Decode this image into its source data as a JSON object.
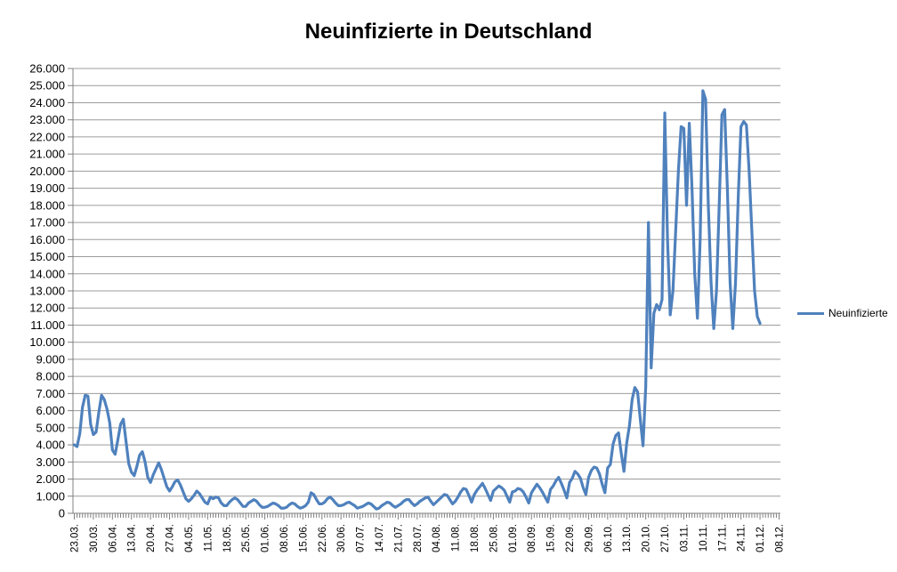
{
  "chart": {
    "title": "Neuinfizierte in Deutschland",
    "legend_label": "Neuinfizierte"
  },
  "chart_data": {
    "type": "line",
    "title": "Neuinfizierte in Deutschland",
    "xlabel": "",
    "ylabel": "",
    "ylim": [
      0,
      26000
    ],
    "y_tick_step": 1000,
    "y_tick_format": "german-thousands-dot",
    "grid": "horizontal",
    "legend_position": "right",
    "n_categories": 260,
    "x_label_every": 7,
    "x_tick_labels": [
      "23.03.",
      "30.03.",
      "06.04.",
      "13.04.",
      "20.04.",
      "27.04.",
      "04.05.",
      "11.05.",
      "18.05.",
      "25.05.",
      "01.06.",
      "08.06.",
      "15.06.",
      "22.06.",
      "30.06.",
      "07.07.",
      "14.07.",
      "21.07.",
      "28.07.",
      "04.08.",
      "11.08.",
      "18.08.",
      "25.08.",
      "01.09.",
      "08.09.",
      "15.09.",
      "22.09.",
      "29.09.",
      "06.10.",
      "13.10.",
      "20.10.",
      "27.10.",
      "03.11.",
      "10.11.",
      "17.11.",
      "24.11.",
      "01.12.",
      "08.12."
    ],
    "series": [
      {
        "name": "Neuinfizierte",
        "color": "#4F81BD",
        "values": [
          4000,
          3900,
          4650,
          6200,
          6900,
          6850,
          5200,
          4600,
          4750,
          5900,
          6900,
          6650,
          6100,
          5300,
          3700,
          3450,
          4300,
          5200,
          5500,
          4200,
          2900,
          2400,
          2200,
          2750,
          3400,
          3600,
          3000,
          2100,
          1800,
          2250,
          2600,
          2950,
          2550,
          2050,
          1550,
          1300,
          1550,
          1850,
          1950,
          1650,
          1250,
          850,
          700,
          850,
          1050,
          1300,
          1150,
          900,
          650,
          550,
          950,
          850,
          950,
          900,
          600,
          450,
          450,
          650,
          800,
          900,
          800,
          600,
          400,
          400,
          600,
          700,
          800,
          700,
          500,
          350,
          350,
          400,
          500,
          600,
          550,
          450,
          300,
          300,
          350,
          500,
          600,
          550,
          400,
          300,
          350,
          450,
          650,
          1200,
          1100,
          800,
          550,
          550,
          650,
          850,
          950,
          800,
          600,
          450,
          450,
          500,
          600,
          650,
          550,
          450,
          300,
          350,
          400,
          500,
          600,
          550,
          400,
          250,
          300,
          450,
          550,
          650,
          600,
          450,
          350,
          450,
          550,
          700,
          800,
          800,
          600,
          450,
          550,
          700,
          800,
          900,
          950,
          700,
          500,
          650,
          800,
          950,
          1100,
          1050,
          800,
          550,
          700,
          950,
          1250,
          1450,
          1400,
          1050,
          650,
          1100,
          1350,
          1550,
          1750,
          1450,
          1100,
          750,
          1300,
          1450,
          1600,
          1500,
          1350,
          1000,
          650,
          1250,
          1300,
          1450,
          1400,
          1250,
          950,
          600,
          1200,
          1450,
          1700,
          1500,
          1250,
          950,
          650,
          1400,
          1600,
          1900,
          2100,
          1750,
          1350,
          900,
          1800,
          2050,
          2450,
          2300,
          2050,
          1500,
          1100,
          2100,
          2500,
          2700,
          2650,
          2300,
          1700,
          1200,
          2650,
          2850,
          4050,
          4550,
          4700,
          3500,
          2450,
          4100,
          5100,
          6650,
          7350,
          7100,
          5500,
          3950,
          7400,
          17000,
          8500,
          11700,
          12200,
          11900,
          12500,
          23400,
          16000,
          11600,
          13000,
          16500,
          20000,
          22600,
          22500,
          18000,
          22800,
          19000,
          14000,
          11400,
          16000,
          24700,
          24200,
          18000,
          13500,
          10800,
          13000,
          18000,
          23300,
          23600,
          19000,
          13500,
          10800,
          13500,
          18500,
          22600,
          22900,
          22700,
          20000,
          16500,
          13000,
          11500,
          11100,
          null,
          null,
          null,
          null,
          null,
          null,
          null
        ]
      }
    ],
    "colors": {
      "line": "#4F81BD",
      "gridline": "#9c9c9c",
      "axis": "#808080",
      "tick_text": "#000000",
      "background": "#ffffff"
    }
  }
}
